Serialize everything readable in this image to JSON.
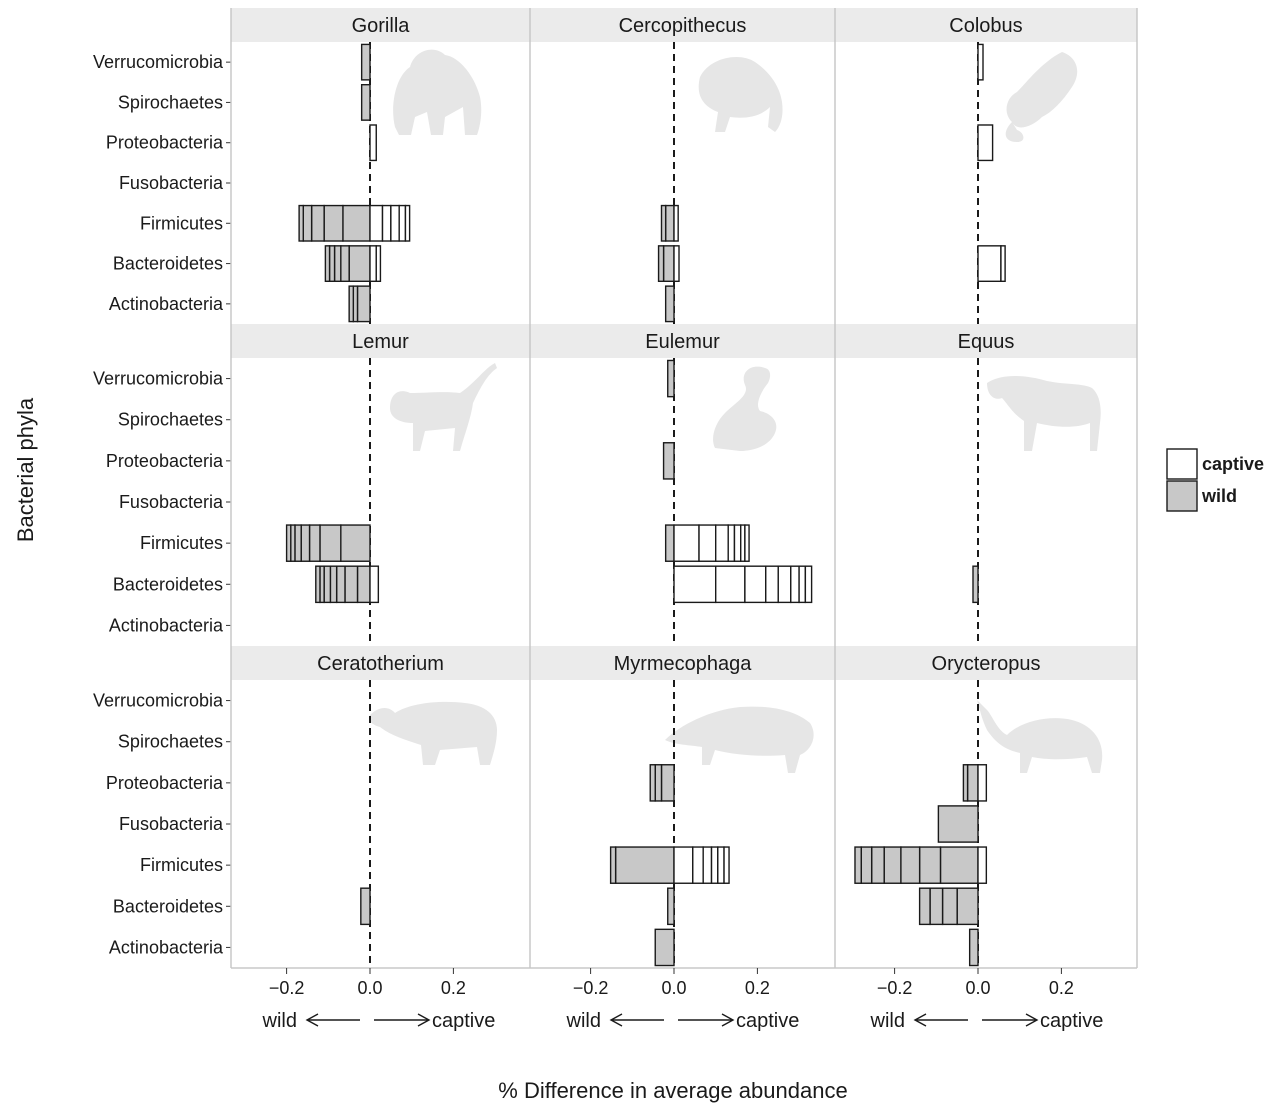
{
  "chart_data": {
    "type": "bar",
    "orientation": "horizontal",
    "stacked": true,
    "xlabel": "% Difference in average abundance",
    "ylabel": "Bacterial phyla",
    "xlim": [
      -0.33,
      0.36
    ],
    "xticks": [
      -0.2,
      0.0,
      0.2
    ],
    "xtick_labels": [
      "−0.2",
      "0.0",
      "0.2"
    ],
    "direction_labels": {
      "left": "wild",
      "right": "captive"
    },
    "categories": [
      "Verrucomicrobia",
      "Spirochaetes",
      "Proteobacteria",
      "Fusobacteria",
      "Firmicutes",
      "Bacteroidetes",
      "Actinobacteria"
    ],
    "legend": {
      "position": "right",
      "entries": [
        {
          "key": "captive",
          "label": "captive",
          "color": "#ffffff"
        },
        {
          "key": "wild",
          "label": "wild",
          "color": "#c8c8c8"
        }
      ]
    },
    "grid": false,
    "panels": [
      {
        "genus": "Gorilla",
        "icon": "gorilla-silhouette-icon",
        "bars": {
          "Verrucomicrobia": {
            "wild": [
              -0.02
            ],
            "captive": []
          },
          "Spirochaetes": {
            "wild": [
              -0.02
            ],
            "captive": []
          },
          "Proteobacteria": {
            "wild": [],
            "captive": [
              0.015
            ]
          },
          "Fusobacteria": {
            "wild": [],
            "captive": []
          },
          "Firmicutes": {
            "wild": [
              -0.065,
              -0.045,
              -0.03,
              -0.02,
              -0.01
            ],
            "captive": [
              0.03,
              0.02,
              0.02,
              0.015,
              0.01
            ]
          },
          "Bacteroidetes": {
            "wild": [
              -0.05,
              -0.02,
              -0.015,
              -0.012,
              -0.01
            ],
            "captive": [
              0.015,
              0.01
            ]
          },
          "Actinobacteria": {
            "wild": [
              -0.03,
              -0.01,
              -0.01
            ],
            "captive": []
          }
        }
      },
      {
        "genus": "Cercopithecus",
        "icon": "monkey-silhouette-icon",
        "bars": {
          "Verrucomicrobia": {
            "wild": [],
            "captive": []
          },
          "Spirochaetes": {
            "wild": [],
            "captive": []
          },
          "Proteobacteria": {
            "wild": [],
            "captive": []
          },
          "Fusobacteria": {
            "wild": [],
            "captive": []
          },
          "Firmicutes": {
            "wild": [
              -0.02,
              -0.01
            ],
            "captive": [
              0.01
            ]
          },
          "Bacteroidetes": {
            "wild": [
              -0.025,
              -0.012
            ],
            "captive": [
              0.012
            ]
          },
          "Actinobacteria": {
            "wild": [
              -0.02
            ],
            "captive": []
          }
        }
      },
      {
        "genus": "Colobus",
        "icon": "colobus-silhouette-icon",
        "bars": {
          "Verrucomicrobia": {
            "wild": [],
            "captive": [
              0.012
            ]
          },
          "Spirochaetes": {
            "wild": [],
            "captive": []
          },
          "Proteobacteria": {
            "wild": [],
            "captive": [
              0.035
            ]
          },
          "Fusobacteria": {
            "wild": [],
            "captive": []
          },
          "Firmicutes": {
            "wild": [],
            "captive": []
          },
          "Bacteroidetes": {
            "wild": [],
            "captive": [
              0.055,
              0.01
            ]
          },
          "Actinobacteria": {
            "wild": [],
            "captive": []
          }
        }
      },
      {
        "genus": "Lemur",
        "icon": "lemur-silhouette-icon",
        "bars": {
          "Verrucomicrobia": {
            "wild": [],
            "captive": []
          },
          "Spirochaetes": {
            "wild": [],
            "captive": []
          },
          "Proteobacteria": {
            "wild": [],
            "captive": []
          },
          "Fusobacteria": {
            "wild": [],
            "captive": []
          },
          "Firmicutes": {
            "wild": [
              -0.07,
              -0.05,
              -0.025,
              -0.02,
              -0.015,
              -0.01,
              -0.01
            ],
            "captive": []
          },
          "Bacteroidetes": {
            "wild": [
              -0.03,
              -0.03,
              -0.02,
              -0.015,
              -0.015,
              -0.01,
              -0.01
            ],
            "captive": [
              0.02
            ]
          },
          "Actinobacteria": {
            "wild": [],
            "captive": []
          }
        }
      },
      {
        "genus": "Eulemur",
        "icon": "ringtail-silhouette-icon",
        "bars": {
          "Verrucomicrobia": {
            "wild": [
              -0.015
            ],
            "captive": []
          },
          "Spirochaetes": {
            "wild": [],
            "captive": []
          },
          "Proteobacteria": {
            "wild": [
              -0.025
            ],
            "captive": []
          },
          "Fusobacteria": {
            "wild": [],
            "captive": []
          },
          "Firmicutes": {
            "wild": [
              -0.02
            ],
            "captive": [
              0.06,
              0.04,
              0.03,
              0.015,
              0.015,
              0.01,
              0.01
            ]
          },
          "Bacteroidetes": {
            "wild": [],
            "captive": [
              0.1,
              0.07,
              0.05,
              0.03,
              0.03,
              0.02,
              0.015,
              0.015
            ]
          },
          "Actinobacteria": {
            "wild": [],
            "captive": []
          }
        }
      },
      {
        "genus": "Equus",
        "icon": "horse-silhouette-icon",
        "bars": {
          "Verrucomicrobia": {
            "wild": [],
            "captive": []
          },
          "Spirochaetes": {
            "wild": [],
            "captive": []
          },
          "Proteobacteria": {
            "wild": [],
            "captive": []
          },
          "Fusobacteria": {
            "wild": [],
            "captive": []
          },
          "Firmicutes": {
            "wild": [],
            "captive": []
          },
          "Bacteroidetes": {
            "wild": [
              -0.012
            ],
            "captive": []
          },
          "Actinobacteria": {
            "wild": [],
            "captive": []
          }
        }
      },
      {
        "genus": "Ceratotherium",
        "icon": "rhino-silhouette-icon",
        "bars": {
          "Verrucomicrobia": {
            "wild": [],
            "captive": []
          },
          "Spirochaetes": {
            "wild": [],
            "captive": []
          },
          "Proteobacteria": {
            "wild": [],
            "captive": []
          },
          "Fusobacteria": {
            "wild": [],
            "captive": []
          },
          "Firmicutes": {
            "wild": [],
            "captive": []
          },
          "Bacteroidetes": {
            "wild": [
              -0.022
            ],
            "captive": []
          },
          "Actinobacteria": {
            "wild": [],
            "captive": []
          }
        }
      },
      {
        "genus": "Myrmecophaga",
        "icon": "anteater-silhouette-icon",
        "bars": {
          "Verrucomicrobia": {
            "wild": [],
            "captive": []
          },
          "Spirochaetes": {
            "wild": [],
            "captive": []
          },
          "Proteobacteria": {
            "wild": [
              -0.03,
              -0.015,
              -0.012
            ],
            "captive": []
          },
          "Fusobacteria": {
            "wild": [],
            "captive": []
          },
          "Firmicutes": {
            "wild": [
              -0.14,
              -0.012
            ],
            "captive": [
              0.045,
              0.025,
              0.02,
              0.015,
              0.015,
              0.012
            ]
          },
          "Bacteroidetes": {
            "wild": [
              -0.015
            ],
            "captive": []
          },
          "Actinobacteria": {
            "wild": [
              -0.045
            ],
            "captive": []
          }
        }
      },
      {
        "genus": "Orycteropus",
        "icon": "aardvark-silhouette-icon",
        "bars": {
          "Verrucomicrobia": {
            "wild": [],
            "captive": []
          },
          "Spirochaetes": {
            "wild": [],
            "captive": []
          },
          "Proteobacteria": {
            "wild": [
              -0.025,
              -0.01
            ],
            "captive": [
              0.02
            ]
          },
          "Fusobacteria": {
            "wild": [
              -0.095
            ],
            "captive": []
          },
          "Firmicutes": {
            "wild": [
              -0.09,
              -0.05,
              -0.045,
              -0.04,
              -0.03,
              -0.025,
              -0.015
            ],
            "captive": [
              0.02
            ]
          },
          "Bacteroidetes": {
            "wild": [
              -0.05,
              -0.035,
              -0.03,
              -0.025
            ],
            "captive": []
          },
          "Actinobacteria": {
            "wild": [
              -0.02
            ],
            "captive": []
          }
        }
      }
    ]
  },
  "colors": {
    "strip_background": "#ebebeb",
    "silhouette": "#e6e6e6",
    "wild_fill": "#c8c8c8",
    "captive_fill": "#ffffff",
    "bar_stroke": "#1a1a1a",
    "panel_border": "#c8c8c8"
  }
}
